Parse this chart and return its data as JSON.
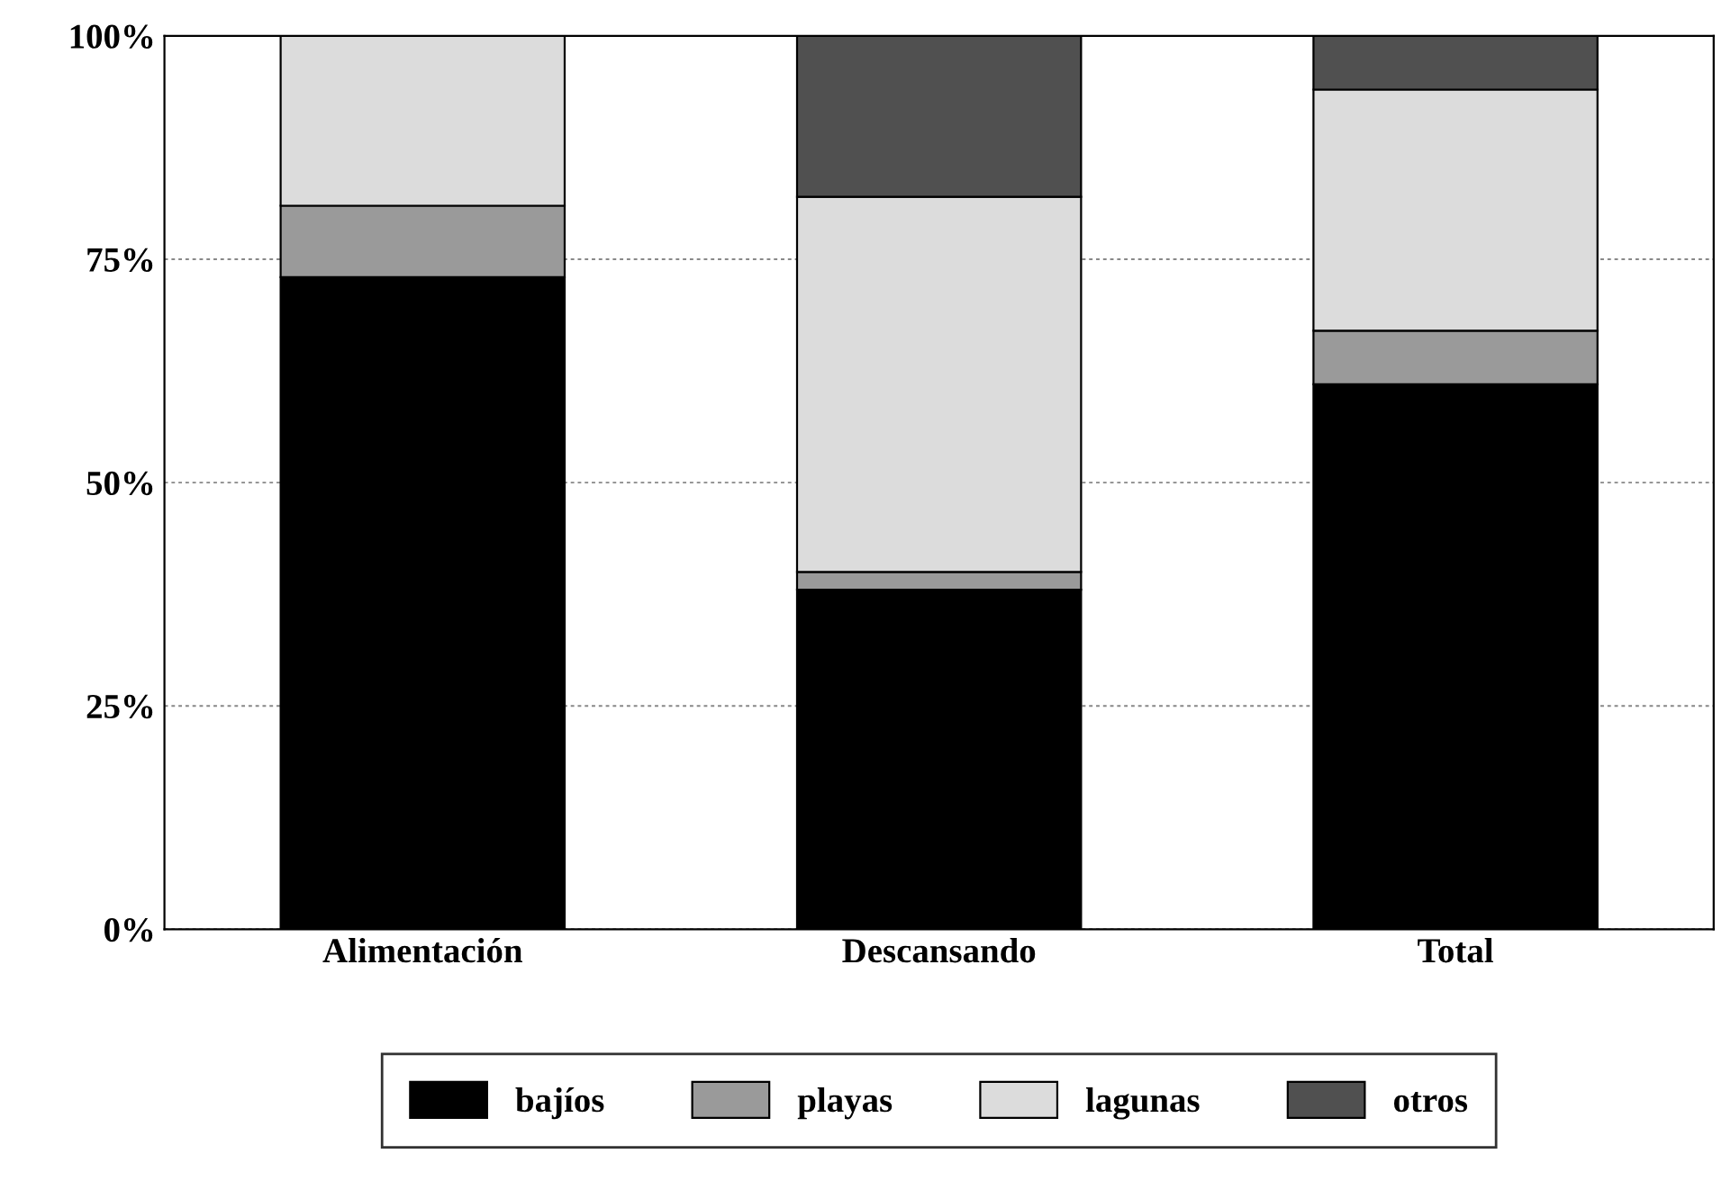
{
  "chart_data": {
    "type": "bar",
    "stacked": true,
    "categories": [
      "Alimentación",
      "Descansando",
      "Total"
    ],
    "series": [
      {
        "name": "bajíos",
        "color": "#000000",
        "values": [
          73,
          38,
          61
        ]
      },
      {
        "name": "playas",
        "color": "#9a9a9a",
        "values": [
          8,
          2,
          6
        ]
      },
      {
        "name": "lagunas",
        "color": "#dcdcdc",
        "values": [
          19,
          42,
          27
        ]
      },
      {
        "name": "otros",
        "color": "#505050",
        "values": [
          null,
          18,
          6
        ]
      }
    ],
    "ylim": [
      0,
      100
    ],
    "yticks": [
      {
        "value": 0,
        "label": "0%"
      },
      {
        "value": 25,
        "label": "25%"
      },
      {
        "value": 50,
        "label": "50%"
      },
      {
        "value": 75,
        "label": "75%"
      },
      {
        "value": 100,
        "label": "100%"
      }
    ],
    "grid": "y",
    "legend": "bottom"
  }
}
